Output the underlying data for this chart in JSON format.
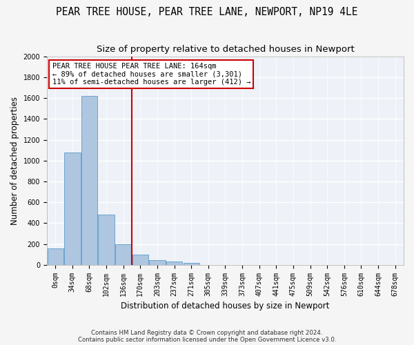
{
  "title": "PEAR TREE HOUSE, PEAR TREE LANE, NEWPORT, NP19 4LE",
  "subtitle": "Size of property relative to detached houses in Newport",
  "xlabel": "Distribution of detached houses by size in Newport",
  "ylabel": "Number of detached properties",
  "footer_line1": "Contains HM Land Registry data © Crown copyright and database right 2024.",
  "footer_line2": "Contains public sector information licensed under the Open Government Licence v3.0.",
  "annotation_line1": "PEAR TREE HOUSE PEAR TREE LANE: 164sqm",
  "annotation_line2": "← 89% of detached houses are smaller (3,301)",
  "annotation_line3": "11% of semi-detached houses are larger (412) →",
  "bar_color": "#aec6e0",
  "bar_edge_color": "#5a9bc9",
  "vline_color": "#cc0000",
  "bins": [
    "0sqm",
    "34sqm",
    "68sqm",
    "102sqm",
    "136sqm",
    "170sqm",
    "203sqm",
    "237sqm",
    "271sqm",
    "305sqm",
    "339sqm",
    "373sqm",
    "407sqm",
    "441sqm",
    "475sqm",
    "509sqm",
    "542sqm",
    "576sqm",
    "610sqm",
    "644sqm",
    "678sqm"
  ],
  "counts": [
    160,
    1080,
    1620,
    480,
    200,
    100,
    45,
    30,
    20,
    0,
    0,
    0,
    0,
    0,
    0,
    0,
    0,
    0,
    0,
    0,
    0
  ],
  "ylim": [
    0,
    2000
  ],
  "yticks": [
    0,
    200,
    400,
    600,
    800,
    1000,
    1200,
    1400,
    1600,
    1800,
    2000
  ],
  "background_color": "#eef2f8",
  "grid_color": "#ffffff",
  "title_fontsize": 10.5,
  "subtitle_fontsize": 9.5,
  "axis_label_fontsize": 8.5,
  "tick_fontsize": 7,
  "annotation_fontsize": 7.5
}
